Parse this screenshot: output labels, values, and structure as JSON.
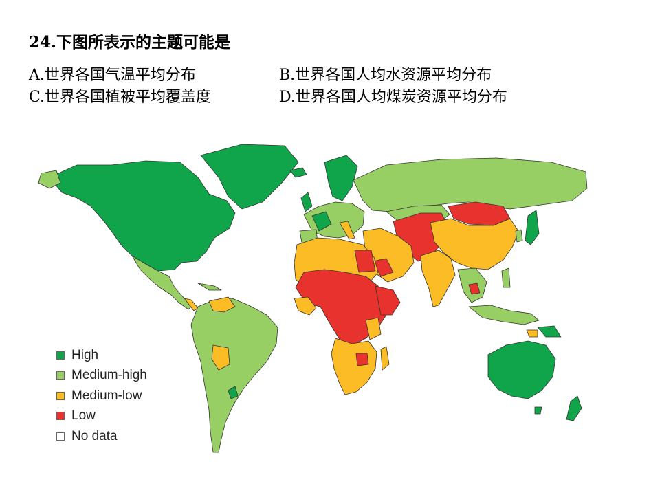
{
  "question": {
    "title": "24.下图所表示的主题可能是"
  },
  "options": [
    "A.世界各国气温平均分布",
    "B.世界各国人均水资源平均分布",
    "C.世界各国植被平均覆盖度",
    "D.世界各国人均煤炭资源平均分布"
  ],
  "legend": {
    "items": [
      {
        "label": "High",
        "color": "#10a54b"
      },
      {
        "label": "Medium-high",
        "color": "#98cf65"
      },
      {
        "label": "Medium-low",
        "color": "#fbbc26"
      },
      {
        "label": "Low",
        "color": "#e8322d"
      },
      {
        "label": "No data",
        "color": "#ffffff"
      }
    ]
  }
}
